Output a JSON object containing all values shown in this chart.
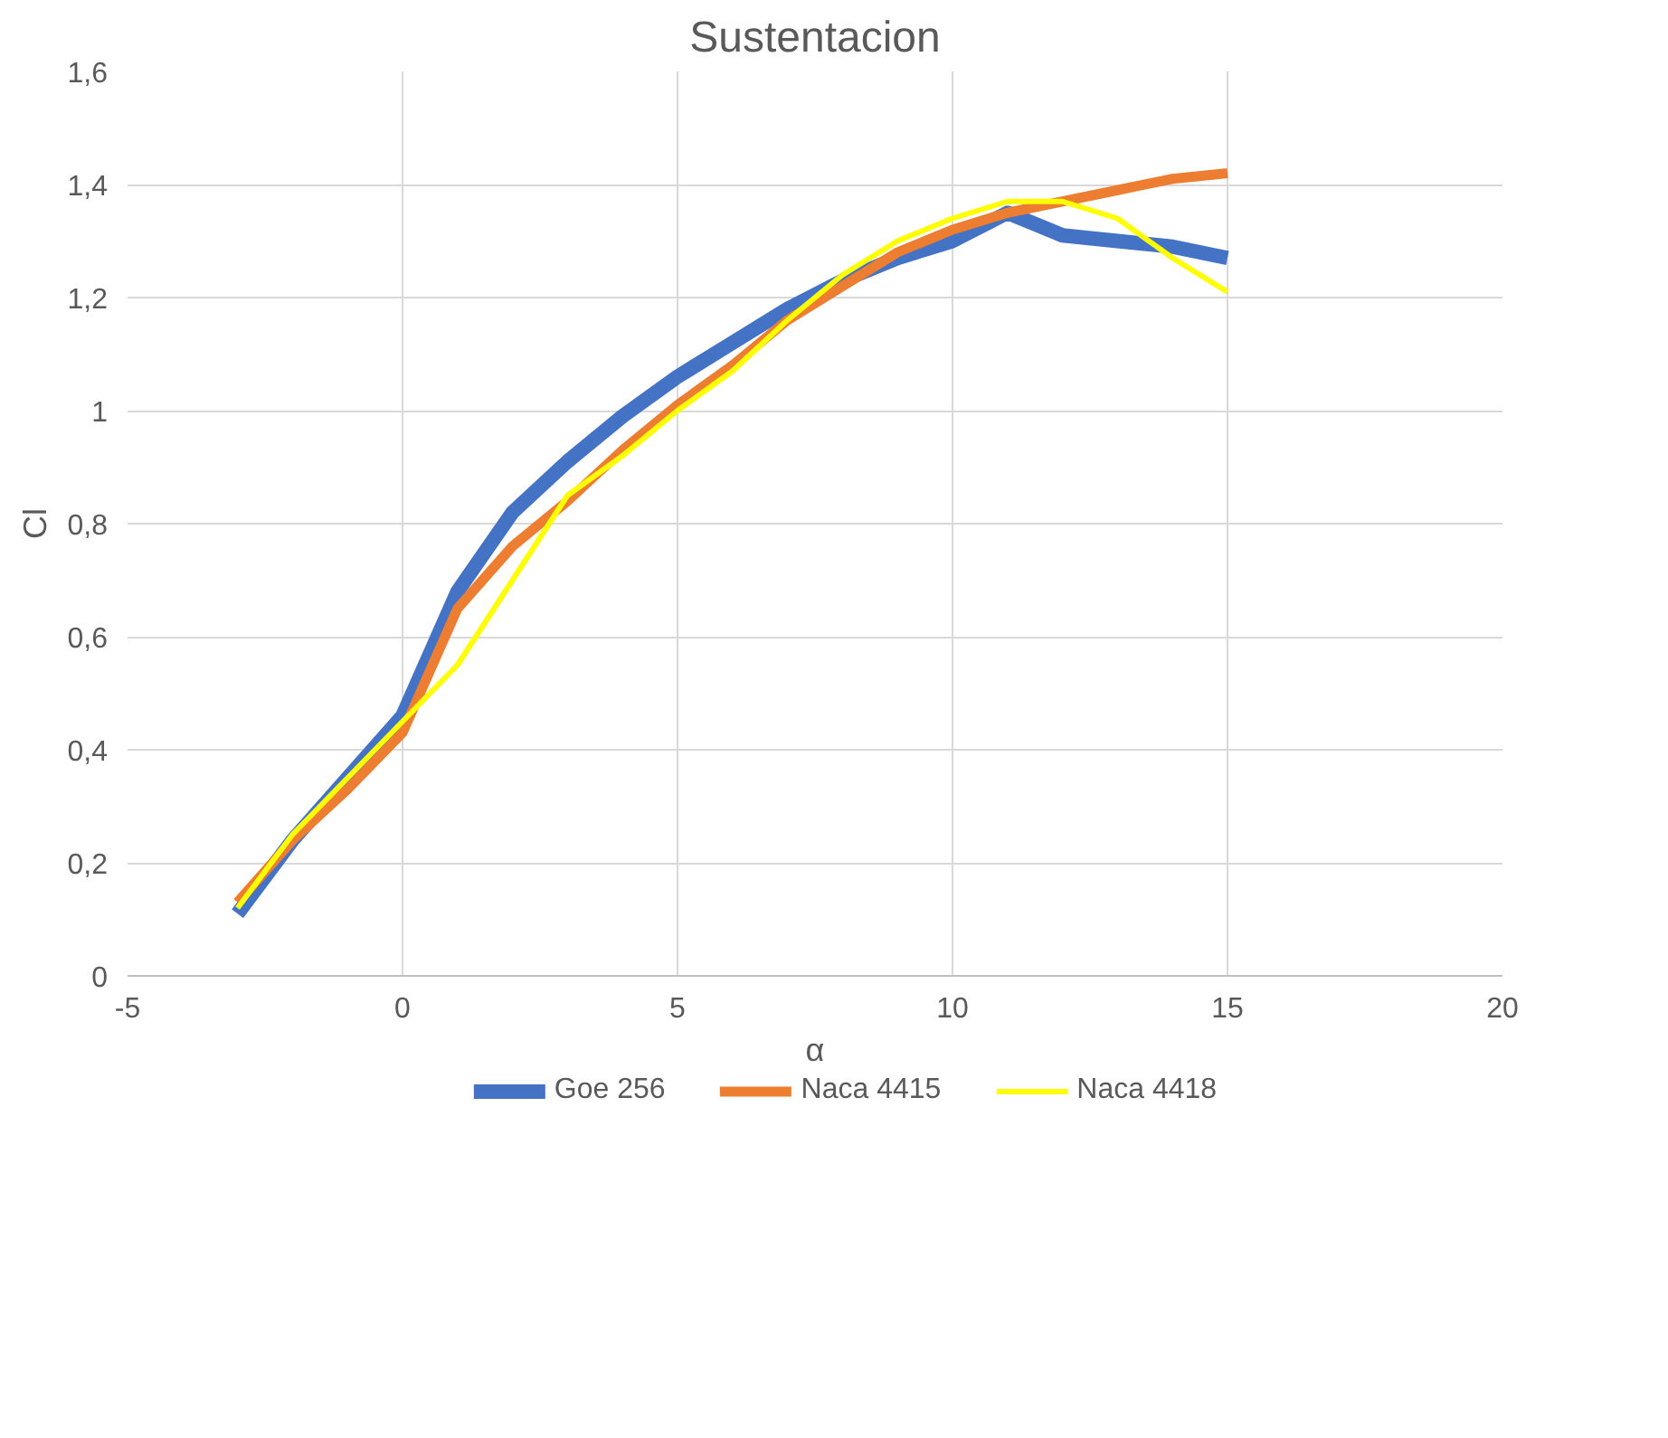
{
  "chart_data": {
    "type": "line",
    "title": "Sustentacion",
    "xlabel": "α",
    "ylabel": "Cl",
    "x": [
      -3,
      -2,
      -1,
      0,
      1,
      2,
      3,
      4,
      5,
      6,
      7,
      8,
      9,
      10,
      11,
      12,
      13,
      14,
      15
    ],
    "series": [
      {
        "name": "Goe 256",
        "color": "#4472c4",
        "values": [
          0.11,
          0.24,
          0.35,
          0.46,
          0.68,
          0.82,
          0.91,
          0.99,
          1.06,
          1.12,
          1.18,
          1.23,
          1.27,
          1.3,
          1.35,
          1.31,
          1.3,
          1.29,
          1.27
        ]
      },
      {
        "name": "Naca 4415",
        "color": "#ed7d31",
        "values": [
          0.13,
          0.24,
          0.33,
          0.43,
          0.65,
          0.76,
          0.84,
          0.93,
          1.01,
          1.08,
          1.16,
          1.22,
          1.28,
          1.32,
          1.35,
          1.37,
          1.39,
          1.41,
          1.42
        ]
      },
      {
        "name": "Naca 4418",
        "color": "#ffff00",
        "values": [
          0.12,
          0.25,
          0.35,
          0.45,
          0.55,
          0.7,
          0.85,
          0.92,
          1.0,
          1.07,
          1.16,
          1.24,
          1.3,
          1.34,
          1.37,
          1.37,
          1.34,
          1.27,
          1.21
        ]
      }
    ],
    "xlim": [
      -5,
      20
    ],
    "ylim": [
      0,
      1.6
    ],
    "xticks": [
      -5,
      0,
      5,
      10,
      15,
      20
    ],
    "yticks": [
      0,
      {
        "value": 0.2,
        "label": "0,2"
      },
      {
        "value": 0.4,
        "label": "0,4"
      },
      {
        "value": 0.6,
        "label": "0,6"
      },
      {
        "value": 0.8,
        "label": "0,8"
      },
      1,
      {
        "value": 1.2,
        "label": "1,2"
      },
      {
        "value": 1.4,
        "label": "1,4"
      },
      {
        "value": 1.6,
        "label": "1,6"
      }
    ],
    "grid": true,
    "legend": "bottom",
    "marker": "none",
    "line_style": "solid"
  }
}
